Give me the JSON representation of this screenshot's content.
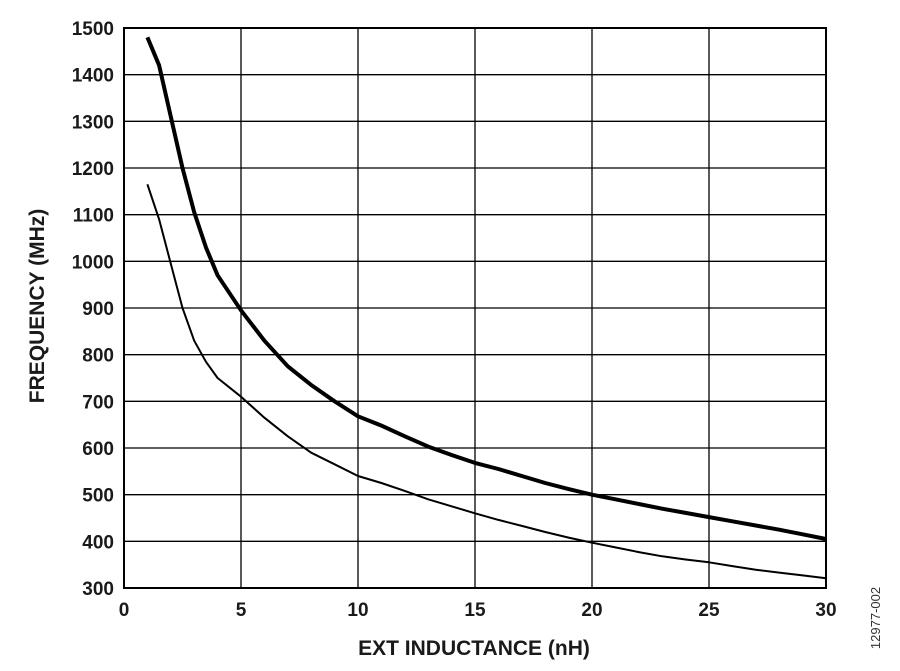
{
  "chart_data": {
    "type": "line",
    "title": "",
    "xlabel": "EXT INDUCTANCE (nH)",
    "ylabel": "FREQUENCY (MHz)",
    "xlim": [
      0,
      30
    ],
    "ylim": [
      300,
      1500
    ],
    "x_ticks": [
      0,
      5,
      10,
      15,
      20,
      25,
      30
    ],
    "y_ticks": [
      300,
      400,
      500,
      600,
      700,
      800,
      900,
      1000,
      1100,
      1200,
      1300,
      1400,
      1500
    ],
    "grid": true,
    "legend": "none",
    "series": [
      {
        "style": "thick",
        "color": "#000000",
        "points": [
          [
            1,
            1480
          ],
          [
            1.5,
            1420
          ],
          [
            2,
            1310
          ],
          [
            2.5,
            1200
          ],
          [
            3,
            1105
          ],
          [
            3.5,
            1030
          ],
          [
            4,
            970
          ],
          [
            5,
            895
          ],
          [
            6,
            830
          ],
          [
            7,
            775
          ],
          [
            8,
            735
          ],
          [
            9,
            700
          ],
          [
            10,
            668
          ],
          [
            11,
            648
          ],
          [
            12,
            625
          ],
          [
            13,
            603
          ],
          [
            14,
            585
          ],
          [
            15,
            568
          ],
          [
            16,
            555
          ],
          [
            17,
            540
          ],
          [
            18,
            525
          ],
          [
            19,
            512
          ],
          [
            20,
            500
          ],
          [
            21,
            490
          ],
          [
            22,
            480
          ],
          [
            23,
            470
          ],
          [
            24,
            461
          ],
          [
            25,
            452
          ],
          [
            26,
            443
          ],
          [
            27,
            434
          ],
          [
            28,
            425
          ],
          [
            29,
            415
          ],
          [
            30,
            405
          ]
        ]
      },
      {
        "style": "thin",
        "color": "#000000",
        "points": [
          [
            1,
            1165
          ],
          [
            1.5,
            1090
          ],
          [
            2,
            995
          ],
          [
            2.5,
            900
          ],
          [
            3,
            830
          ],
          [
            3.5,
            785
          ],
          [
            4,
            750
          ],
          [
            5,
            710
          ],
          [
            6,
            665
          ],
          [
            7,
            625
          ],
          [
            8,
            590
          ],
          [
            9,
            565
          ],
          [
            10,
            540
          ],
          [
            11,
            525
          ],
          [
            12,
            508
          ],
          [
            13,
            490
          ],
          [
            14,
            475
          ],
          [
            15,
            460
          ],
          [
            16,
            446
          ],
          [
            17,
            433
          ],
          [
            18,
            420
          ],
          [
            19,
            408
          ],
          [
            20,
            397
          ],
          [
            21,
            387
          ],
          [
            22,
            377
          ],
          [
            23,
            368
          ],
          [
            24,
            361
          ],
          [
            25,
            355
          ],
          [
            26,
            347
          ],
          [
            27,
            339
          ],
          [
            28,
            333
          ],
          [
            29,
            327
          ],
          [
            30,
            321
          ]
        ]
      }
    ]
  },
  "figure_id": "12977-002"
}
